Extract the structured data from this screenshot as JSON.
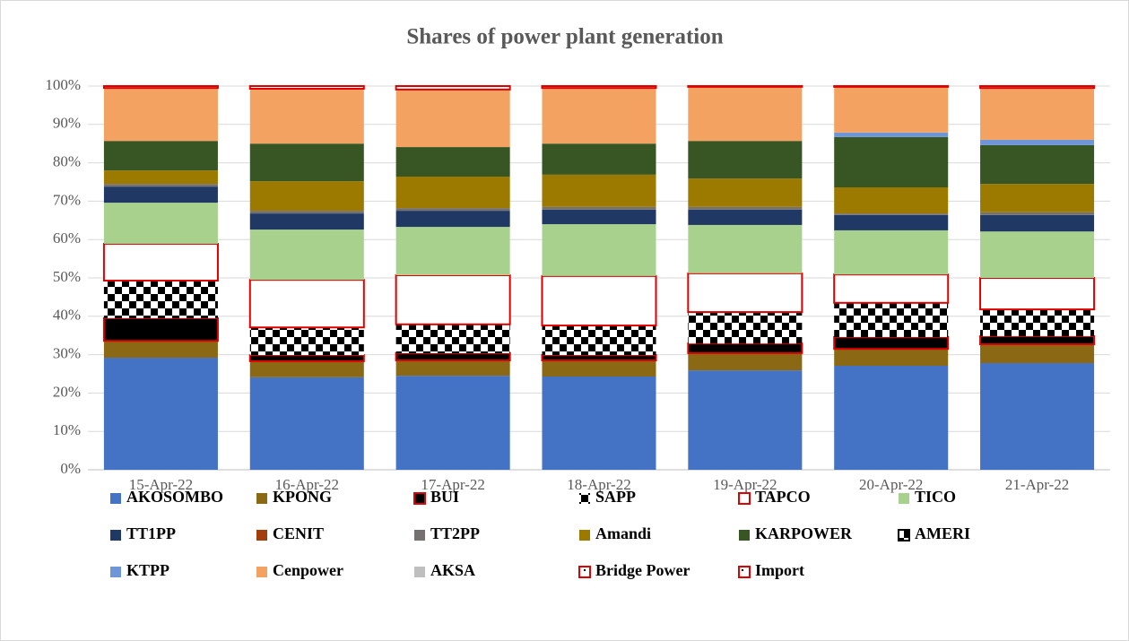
{
  "chart_data": {
    "type": "stacked_bar",
    "title": "Shares of power plant generation",
    "categories": [
      "15-Apr-22",
      "16-Apr-22",
      "17-Apr-22",
      "18-Apr-22",
      "19-Apr-22",
      "20-Apr-22",
      "21-Apr-22"
    ],
    "ylim": [
      0,
      100
    ],
    "yticks": [
      {
        "value": 0,
        "label": "0%"
      },
      {
        "value": 10,
        "label": "10%"
      },
      {
        "value": 20,
        "label": "20%"
      },
      {
        "value": 30,
        "label": "30%"
      },
      {
        "value": 40,
        "label": "40%"
      },
      {
        "value": 50,
        "label": "50%"
      },
      {
        "value": 60,
        "label": "60%"
      },
      {
        "value": 70,
        "label": "70%"
      },
      {
        "value": 80,
        "label": "80%"
      },
      {
        "value": 90,
        "label": "90%"
      },
      {
        "value": 100,
        "label": "100%"
      }
    ],
    "grid": true,
    "legend": "bottom",
    "series": [
      {
        "name": "AKOSOMBO",
        "color": "#4472c4",
        "values": [
          29.2,
          24.1,
          24.5,
          24.3,
          25.9,
          27.1,
          27.8
        ]
      },
      {
        "name": "KPONG",
        "color": "#8b6914",
        "values": [
          4.4,
          4.2,
          4.0,
          4.2,
          4.5,
          4.4,
          4.9
        ]
      },
      {
        "name": "BUI",
        "color": "#000000",
        "border": "#e00000",
        "values": [
          5.9,
          1.6,
          1.9,
          1.4,
          2.5,
          3.1,
          2.1
        ]
      },
      {
        "name": "SAPP",
        "color": "#000000",
        "pattern": "checker",
        "values": [
          9.8,
          7.2,
          7.5,
          7.7,
          8.2,
          8.9,
          7.0
        ]
      },
      {
        "name": "TAPCO",
        "color": "#ffffff",
        "border": "#e00000",
        "values": [
          9.6,
          12.4,
          12.8,
          12.9,
          10.1,
          7.4,
          8.2
        ]
      },
      {
        "name": "TICO",
        "color": "#a9d18e",
        "values": [
          10.7,
          13.1,
          12.6,
          13.5,
          12.6,
          11.5,
          12.1
        ]
      },
      {
        "name": "TT1PP",
        "color": "#203864",
        "values": [
          4.2,
          4.2,
          4.2,
          3.8,
          4.0,
          4.0,
          4.3
        ]
      },
      {
        "name": "CENIT",
        "color": "#a33d0b",
        "values": [
          0,
          0,
          0,
          0,
          0,
          0,
          0
        ]
      },
      {
        "name": "TT2PP",
        "color": "#767171",
        "values": [
          0.7,
          0.7,
          0.7,
          0.7,
          0.7,
          0.4,
          0.7
        ]
      },
      {
        "name": "Amandi",
        "color": "#9c7a00",
        "values": [
          3.5,
          7.7,
          8.2,
          8.4,
          7.4,
          6.8,
          7.4
        ]
      },
      {
        "name": "KARPOWER",
        "color": "#375623",
        "values": [
          7.7,
          9.8,
          7.7,
          8.1,
          9.8,
          13.1,
          10.1
        ]
      },
      {
        "name": "AMERI",
        "color": "#000000",
        "pattern": "checker",
        "border": "#000000",
        "values": [
          0,
          0,
          0,
          0,
          0,
          0,
          0
        ]
      },
      {
        "name": "KTPP",
        "color": "#6f96d6",
        "values": [
          0,
          0,
          0,
          0,
          0,
          1.2,
          1.4
        ]
      },
      {
        "name": "Cenpower",
        "color": "#f4a261",
        "values": [
          13.8,
          14.3,
          15.0,
          14.5,
          14.1,
          11.9,
          13.5
        ]
      },
      {
        "name": "AKSA",
        "color": "#bfbfbf",
        "values": [
          0,
          0,
          0,
          0,
          0,
          0,
          0
        ]
      },
      {
        "name": "Bridge Power",
        "color": "#ffffff",
        "pattern": "dot",
        "border": "#e00000",
        "values": [
          0,
          0,
          0.9,
          0,
          0,
          0,
          0
        ]
      },
      {
        "name": "Import",
        "color": "#ffffff",
        "pattern": "dot",
        "border": "#e00000",
        "values": [
          0.5,
          0.7,
          0,
          0.5,
          0.2,
          0.2,
          0.5
        ]
      }
    ]
  }
}
